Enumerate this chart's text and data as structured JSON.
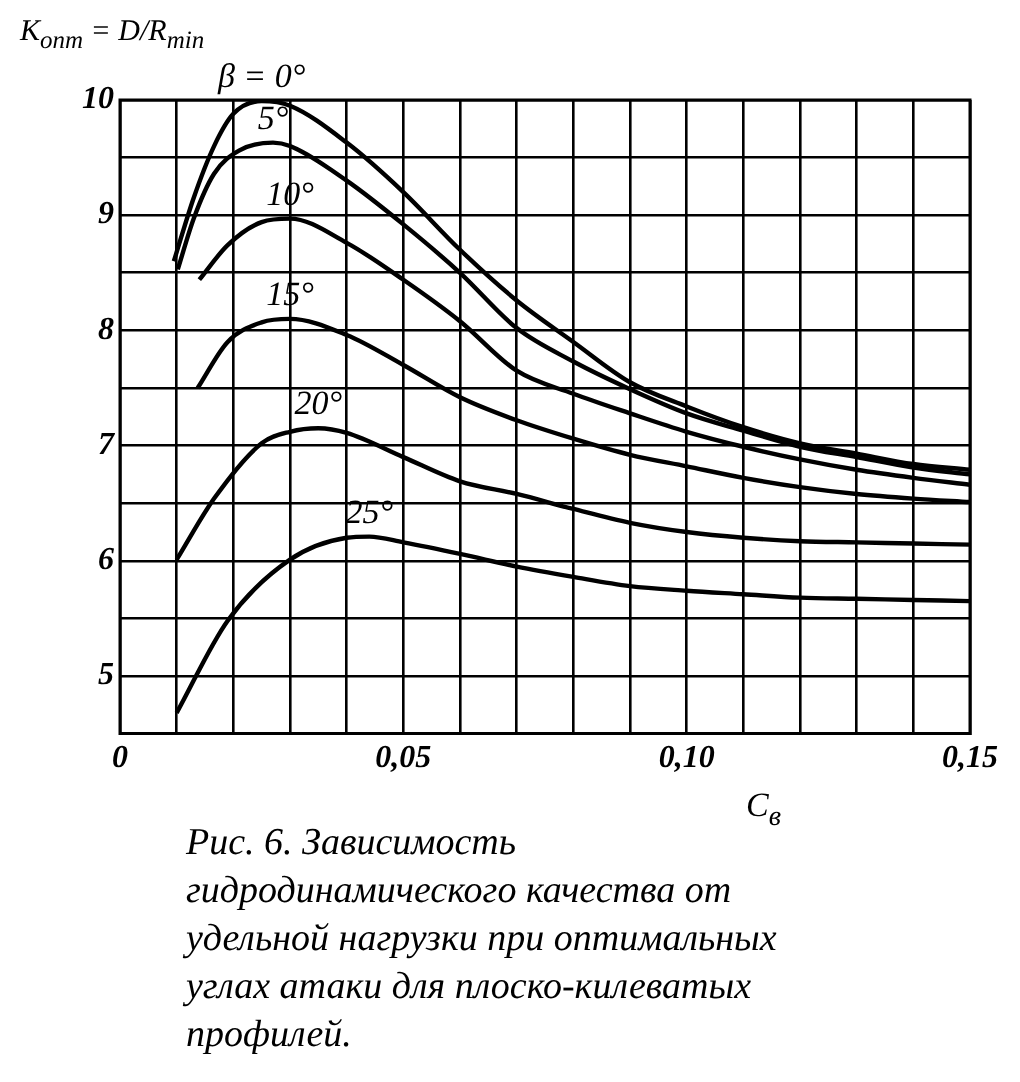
{
  "chart_data": {
    "type": "line",
    "ylabel": "K$_{опт}$ = D/R$_{min}$",
    "xlabel": "C$_{в}$",
    "annotations": [
      "Рис. 6. Зависимость гидродинамического качества от удельной нагрузки при оптимальных углах атаки для плоско-килеватых профилей."
    ],
    "xlim": [
      0,
      0.15
    ],
    "ylim": [
      4.5,
      10
    ],
    "xticks": [
      0,
      {
        "value": 0.01,
        "label": null
      },
      {
        "value": 0.02,
        "label": null
      },
      {
        "value": 0.03,
        "label": null
      },
      {
        "value": 0.04,
        "label": null
      },
      {
        "value": 0.05,
        "label": "0,05"
      },
      {
        "value": 0.06,
        "label": null
      },
      {
        "value": 0.07,
        "label": null
      },
      {
        "value": 0.08,
        "label": null
      },
      {
        "value": 0.09,
        "label": null
      },
      {
        "value": 0.1,
        "label": "0,10"
      },
      {
        "value": 0.11,
        "label": null
      },
      {
        "value": 0.12,
        "label": null
      },
      {
        "value": 0.13,
        "label": null
      },
      {
        "value": 0.14,
        "label": null
      },
      {
        "value": 0.15,
        "label": "0,15"
      }
    ],
    "yticks": [
      {
        "value": 4.5,
        "label": null
      },
      5,
      {
        "value": 5.5,
        "label": null
      },
      6,
      {
        "value": 6.5,
        "label": null
      },
      7,
      {
        "value": 7.5,
        "label": null
      },
      8,
      {
        "value": 8.5,
        "label": null
      },
      9,
      {
        "value": 9.5,
        "label": null
      },
      10
    ],
    "grid": true,
    "marker": "none",
    "line_style": "solid",
    "series": [
      {
        "name": "β = 0°",
        "color": "#000000",
        "x": [
          0.0095,
          0.013,
          0.0166,
          0.02,
          0.025,
          0.03,
          0.04,
          0.05,
          0.06,
          0.07,
          0.08,
          0.09,
          0.1,
          0.11,
          0.12,
          0.13,
          0.14,
          0.15
        ],
        "values": [
          8.6,
          9.15,
          9.6,
          9.88,
          9.99,
          9.95,
          9.63,
          9.2,
          8.7,
          8.26,
          7.9,
          7.55,
          7.34,
          7.16,
          7.02,
          6.93,
          6.84,
          6.79
        ]
      },
      {
        "name": "5°",
        "color": "#000000",
        "x": [
          0.0102,
          0.013,
          0.0166,
          0.021,
          0.027,
          0.03,
          0.04,
          0.05,
          0.06,
          0.07,
          0.08,
          0.09,
          0.1,
          0.11,
          0.12,
          0.13,
          0.14,
          0.15
        ],
        "values": [
          8.53,
          8.97,
          9.36,
          9.56,
          9.63,
          9.6,
          9.3,
          8.92,
          8.5,
          8.02,
          7.73,
          7.49,
          7.28,
          7.13,
          6.99,
          6.9,
          6.81,
          6.75
        ]
      },
      {
        "name": "10°",
        "color": "#000000",
        "x": [
          0.014,
          0.019,
          0.025,
          0.03,
          0.04,
          0.05,
          0.06,
          0.07,
          0.08,
          0.09,
          0.1,
          0.11,
          0.12,
          0.13,
          0.14,
          0.15
        ],
        "values": [
          8.44,
          8.74,
          8.94,
          8.97,
          8.76,
          8.44,
          8.08,
          7.65,
          7.45,
          7.28,
          7.12,
          6.99,
          6.88,
          6.79,
          6.72,
          6.66
        ]
      },
      {
        "name": "15°",
        "color": "#000000",
        "x": [
          0.0137,
          0.019,
          0.025,
          0.03,
          0.04,
          0.05,
          0.06,
          0.07,
          0.08,
          0.09,
          0.1,
          0.11,
          0.12,
          0.13,
          0.14,
          0.15
        ],
        "values": [
          7.5,
          7.9,
          8.07,
          8.1,
          7.96,
          7.7,
          7.42,
          7.22,
          7.06,
          6.92,
          6.82,
          6.72,
          6.64,
          6.58,
          6.54,
          6.51
        ]
      },
      {
        "name": "20°",
        "color": "#000000",
        "x": [
          0.01,
          0.0166,
          0.025,
          0.03,
          0.035,
          0.04,
          0.05,
          0.06,
          0.07,
          0.08,
          0.09,
          0.1,
          0.11,
          0.12,
          0.13,
          0.14,
          0.15
        ],
        "values": [
          6.01,
          6.54,
          7.02,
          7.12,
          7.15,
          7.11,
          6.9,
          6.69,
          6.58,
          6.45,
          6.33,
          6.25,
          6.2,
          6.17,
          6.16,
          6.15,
          6.14
        ]
      },
      {
        "name": "25°",
        "color": "#000000",
        "x": [
          0.01,
          0.019,
          0.03,
          0.04,
          0.044,
          0.05,
          0.06,
          0.07,
          0.08,
          0.09,
          0.1,
          0.11,
          0.12,
          0.13,
          0.14,
          0.15
        ],
        "values": [
          4.68,
          5.48,
          6.01,
          6.2,
          6.21,
          6.16,
          6.06,
          5.95,
          5.86,
          5.78,
          5.74,
          5.71,
          5.68,
          5.67,
          5.66,
          5.65
        ]
      }
    ]
  }
}
